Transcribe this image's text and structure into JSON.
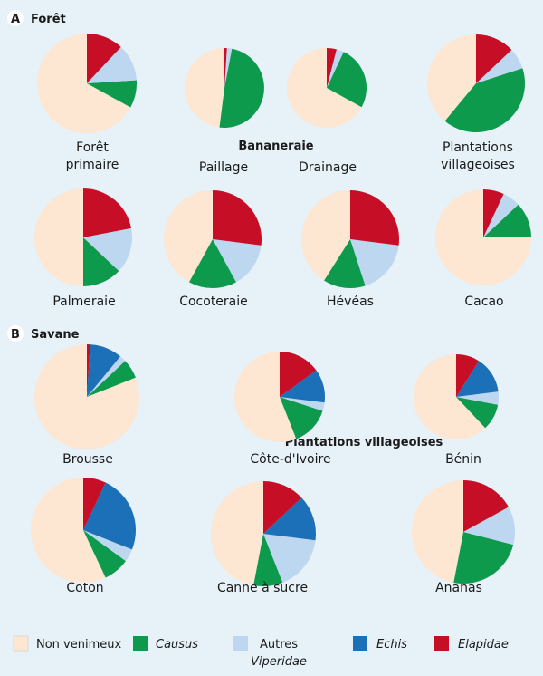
{
  "colors": {
    "non_venimeux": "#fde6d2",
    "causus": "#0d9a4d",
    "autres_viperidae": "#bcd7ef",
    "echis": "#1b70b8",
    "elapidae": "#c70e27",
    "background": "#e6f1f8"
  },
  "sections": {
    "A": {
      "letter": "A",
      "title": "Forêt"
    },
    "B": {
      "letter": "B",
      "title": "Savane"
    }
  },
  "group_labels": {
    "bananeraie": "Bananeraie",
    "plantations": "Plantations villageoises"
  },
  "legend": {
    "non_venimeux": "Non venimeux",
    "causus": "Causus",
    "autres_1": "Autres",
    "autres_2": "Viperidae",
    "echis": "Echis",
    "elapidae": "Elapidae"
  },
  "chart_data": {
    "type": "pie",
    "series": [
      "Non venimeux",
      "Causus",
      "Autres Viperidae",
      "Echis",
      "Elapidae"
    ],
    "charts": [
      {
        "id": "foret-primaire",
        "label": [
          "Forêt",
          "primaire"
        ],
        "values": [
          67,
          9,
          12,
          0,
          12
        ]
      },
      {
        "id": "bananeraie-paillage",
        "label": [
          "Paillage"
        ],
        "values": [
          48,
          49,
          2,
          0,
          1
        ]
      },
      {
        "id": "bananeraie-drainage",
        "label": [
          "Drainage"
        ],
        "values": [
          67,
          26,
          3,
          0,
          4
        ]
      },
      {
        "id": "plantations-villageoises-foret",
        "label": [
          "Plantations",
          "villageoises"
        ],
        "values": [
          39,
          41,
          7,
          0,
          13
        ]
      },
      {
        "id": "palmeraie",
        "label": [
          "Palmeraie"
        ],
        "values": [
          50,
          13,
          15,
          0,
          22
        ]
      },
      {
        "id": "cocoteraie",
        "label": [
          "Cocoteraie"
        ],
        "values": [
          42,
          16,
          15,
          0,
          27
        ]
      },
      {
        "id": "heveas",
        "label": [
          "Hévéas"
        ],
        "values": [
          41,
          14,
          18,
          0,
          27
        ]
      },
      {
        "id": "cacao",
        "label": [
          "Cacao"
        ],
        "values": [
          75,
          12,
          6,
          0,
          7
        ]
      },
      {
        "id": "brousse",
        "label": [
          "Brousse"
        ],
        "values": [
          81,
          6,
          2,
          10,
          1
        ]
      },
      {
        "id": "cote-d-ivoire",
        "label": [
          "Côte-d'Ivoire"
        ],
        "values": [
          56,
          14,
          3,
          12,
          15
        ]
      },
      {
        "id": "benin",
        "label": [
          "Bénin"
        ],
        "values": [
          62,
          10,
          5,
          14,
          9
        ]
      },
      {
        "id": "coton",
        "label": [
          "Coton"
        ],
        "values": [
          57,
          8,
          4,
          24,
          7
        ]
      },
      {
        "id": "canne-a-sucre",
        "label": [
          "Canne à sucre"
        ],
        "values": [
          47,
          9,
          17,
          14,
          13
        ]
      },
      {
        "id": "ananas",
        "label": [
          "Ananas"
        ],
        "values": [
          47,
          24,
          12,
          0,
          17
        ]
      }
    ]
  }
}
